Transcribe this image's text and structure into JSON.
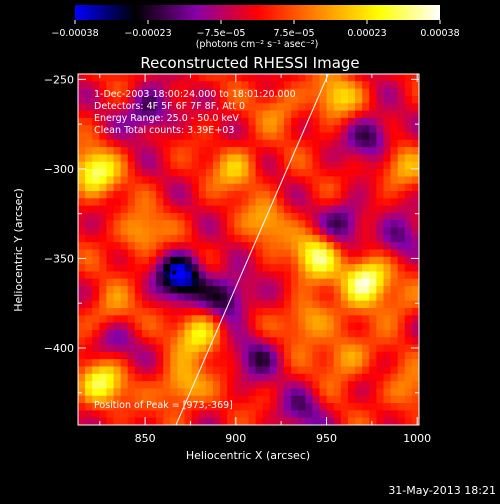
{
  "chart_data": {
    "type": "heatmap",
    "title": "Reconstructed RHESSI Image",
    "xlabel": "Heliocentric X (arcsec)",
    "ylabel": "Heliocentric Y (arcsec)",
    "xlim": [
      813,
      1001
    ],
    "ylim": [
      -443,
      -247
    ],
    "x_ticks": [
      850,
      900,
      950,
      1000
    ],
    "y_ticks": [
      -250,
      -300,
      -350,
      -400
    ],
    "x_tick_labels": [
      "850",
      "900",
      "950",
      "1000"
    ],
    "y_tick_labels": [
      "−250",
      "−300",
      "−350",
      "−400"
    ],
    "colorbar": {
      "range": [
        -0.00038,
        0.00038
      ],
      "tick_labels": [
        "−0.00038",
        "−0.00023",
        "−7.5e−05",
        "7.5e−05",
        "0.00023",
        "0.00038"
      ],
      "units_label": "(photons cm⁻² s⁻¹ asec⁻²)",
      "colormap": [
        "#0000ff",
        "#000000",
        "#8800aa",
        "#ff0000",
        "#ff8800",
        "#ffff00",
        "#ffffff"
      ]
    },
    "annotations": [
      "1-Dec-2003 18:00:24.000 to 18:01:20.000",
      "Detectors: 4F 5F 6F 7F 8F, Att 0",
      "Energy Range: 25.0 - 50.0 keV",
      "Clean    Total counts: 3.39E+03"
    ],
    "peak_label": "Position of Peak = [973,-369]",
    "peak_position": [
      973,
      -369
    ],
    "marked_point": [
      866,
      -358
    ],
    "limb_line": [
      [
        867,
        -443
      ],
      [
        951,
        -247
      ]
    ],
    "hotspots": [
      {
        "x": 972,
        "y": -362,
        "v": 0.00038
      },
      {
        "x": 945,
        "y": -348,
        "v": 0.0003
      },
      {
        "x": 822,
        "y": -302,
        "v": 0.0003
      },
      {
        "x": 826,
        "y": -420,
        "v": 0.00028
      },
      {
        "x": 880,
        "y": -392,
        "v": 0.00025
      },
      {
        "x": 870,
        "y": -422,
        "v": 0.00022
      },
      {
        "x": 940,
        "y": -385,
        "v": 0.0002
      },
      {
        "x": 960,
        "y": -405,
        "v": 0.00018
      },
      {
        "x": 955,
        "y": -260,
        "v": 0.0002
      },
      {
        "x": 900,
        "y": -300,
        "v": 0.00018
      },
      {
        "x": 848,
        "y": -336,
        "v": 0.00018
      },
      {
        "x": 917,
        "y": -330,
        "v": 0.00016
      },
      {
        "x": 990,
        "y": -300,
        "v": 0.00015
      },
      {
        "x": 995,
        "y": -425,
        "v": 0.00014
      },
      {
        "x": 830,
        "y": -380,
        "v": 0.00014
      },
      {
        "x": 990,
        "y": -375,
        "v": 0.00012
      },
      {
        "x": 925,
        "y": -265,
        "v": 0.00012
      },
      {
        "x": 870,
        "y": -360,
        "v": -0.00038
      },
      {
        "x": 895,
        "y": -372,
        "v": -0.00026
      },
      {
        "x": 852,
        "y": -268,
        "v": -0.00022
      },
      {
        "x": 975,
        "y": -282,
        "v": -0.00022
      },
      {
        "x": 960,
        "y": -330,
        "v": -0.0002
      },
      {
        "x": 912,
        "y": -405,
        "v": -0.00016
      },
      {
        "x": 990,
        "y": -340,
        "v": -0.00018
      },
      {
        "x": 937,
        "y": -435,
        "v": -0.00014
      },
      {
        "x": 832,
        "y": -398,
        "v": -0.00012
      }
    ]
  },
  "footer": {
    "timestamp": "31-May-2013 18:21"
  }
}
